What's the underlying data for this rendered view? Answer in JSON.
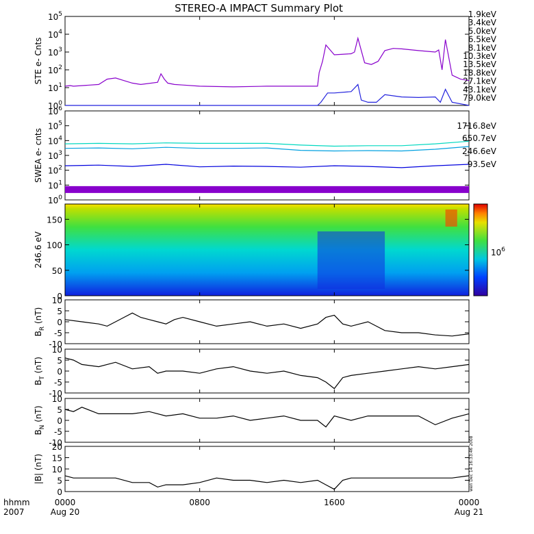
{
  "title": "STEREO-A IMPACT Summary Plot",
  "time_axis": {
    "row1_label": "hhmm",
    "row2_label": "2007",
    "ticks": [
      {
        "x_hours": 0,
        "time": "0000",
        "date": "Aug 20"
      },
      {
        "x_hours": 8,
        "time": "0800",
        "date": ""
      },
      {
        "x_hours": 16,
        "time": "1600",
        "date": ""
      },
      {
        "x_hours": 24,
        "time": "0000",
        "date": "Aug 21"
      }
    ],
    "range_hours": [
      0,
      24
    ]
  },
  "side_text": "wen Dec 14 16:33:46 2008",
  "colors": {
    "ste_1_9": "#8800cc",
    "ste_3_4": "#2222dd",
    "swea_1716": "#8800cc",
    "swea_650": "#0000dd",
    "swea_246": "#00a0e0",
    "swea_93": "#00d8c0",
    "mag": "#000000"
  },
  "chart_data": [
    {
      "panel": "ste",
      "type": "line",
      "ylabel": "STE e- Cnts",
      "yscale": "log",
      "ylim": [
        1,
        100000
      ],
      "ytick_labels": [
        "10^0",
        "10^1",
        "10^2",
        "10^3",
        "10^4",
        "10^5"
      ],
      "legend": [
        {
          "label": "1.9keV",
          "color": "#8800cc"
        },
        {
          "label": "3.4keV",
          "color": "#2222dd"
        },
        {
          "label": "5.0keV",
          "color": "#0050ff"
        },
        {
          "label": "6.5keV",
          "color": "#00aadd"
        },
        {
          "label": "8.1keV",
          "color": "#00c8c8"
        },
        {
          "label": "10.3keV",
          "color": "#00c000"
        },
        {
          "label": "13.5keV",
          "color": "#66cc00"
        },
        {
          "label": "18.8keV",
          "color": "#cccc00"
        },
        {
          "label": "27.1keV",
          "color": "#eecc00"
        },
        {
          "label": "43.1keV",
          "color": "#ee8800"
        },
        {
          "label": "79.0keV",
          "color": "#dd2200"
        }
      ],
      "series": [
        {
          "name": "1.9keV",
          "x": [
            0,
            0.3,
            0.5,
            2,
            2.5,
            3,
            3.5,
            4,
            4.5,
            5.5,
            5.7,
            5.9,
            6.1,
            6.5,
            7,
            8,
            10,
            12,
            15,
            15.1,
            15.3,
            15.5,
            16,
            17,
            17.2,
            17.4,
            17.8,
            18.2,
            18.6,
            19,
            19.5,
            20,
            21,
            22,
            22.2,
            22.4,
            22.6,
            23,
            23.5,
            24
          ],
          "y": [
            12,
            13,
            12,
            15,
            30,
            35,
            25,
            18,
            15,
            20,
            60,
            30,
            18,
            15,
            14,
            12,
            11,
            12,
            12,
            70,
            300,
            2500,
            700,
            800,
            1000,
            6000,
            250,
            200,
            300,
            1200,
            1600,
            1500,
            1200,
            1000,
            1300,
            100,
            5000,
            50,
            30,
            25
          ]
        },
        {
          "name": "3.4keV",
          "x": [
            0,
            14.9,
            15,
            15.2,
            15.6,
            16,
            17,
            17.4,
            17.6,
            18,
            18.5,
            19,
            20,
            21,
            22,
            22.3,
            22.6,
            23,
            24
          ],
          "y": [
            1,
            1,
            1,
            1.5,
            5,
            5,
            6,
            15,
            2,
            1.5,
            1.5,
            4,
            3,
            2.8,
            3,
            1.5,
            8,
            1.5,
            1
          ]
        }
      ]
    },
    {
      "panel": "swea",
      "type": "line",
      "ylabel": "SWEA e- cnts",
      "yscale": "log",
      "ylim": [
        1,
        1000000
      ],
      "ytick_labels": [
        "10^0",
        "10^1",
        "10^2",
        "10^3",
        "10^4",
        "10^5",
        "10^6"
      ],
      "series": [
        {
          "name": "1716.8eV",
          "x": [
            0,
            4,
            8,
            12,
            16,
            20,
            24
          ],
          "y": [
            5,
            5,
            5,
            5,
            5,
            5,
            5
          ]
        },
        {
          "name": "650.7eV",
          "x": [
            0,
            2,
            4,
            6,
            8,
            10,
            12,
            14,
            16,
            18,
            20,
            22,
            24
          ],
          "y": [
            200,
            220,
            180,
            250,
            170,
            190,
            180,
            160,
            200,
            180,
            150,
            200,
            250
          ]
        },
        {
          "name": "246.6eV",
          "x": [
            0,
            2,
            4,
            6,
            8,
            10,
            12,
            14,
            16,
            18,
            20,
            22,
            24
          ],
          "y": [
            3000,
            3200,
            2800,
            3500,
            3000,
            3000,
            3200,
            2200,
            2000,
            2100,
            2000,
            2600,
            4000
          ]
        },
        {
          "name": "93.5eV",
          "x": [
            0,
            2,
            4,
            6,
            8,
            10,
            12,
            14,
            16,
            18,
            20,
            22,
            24
          ],
          "y": [
            6000,
            6500,
            6000,
            7000,
            6500,
            6500,
            6500,
            5000,
            4200,
            4500,
            4500,
            6000,
            9000
          ]
        }
      ]
    },
    {
      "panel": "pad",
      "type": "heatmap",
      "ylabel": "246.6 eV",
      "ylim": [
        0,
        180
      ],
      "ytick_labels": [
        "0",
        "50",
        "100",
        "150"
      ],
      "colorbar_label": "10^6"
    },
    {
      "panel": "br",
      "type": "line",
      "ylabel": "B_R (nT)",
      "ylim": [
        -10,
        10
      ],
      "ytick_labels": [
        "-10",
        "-5",
        "0",
        "5",
        "10"
      ],
      "series": [
        {
          "name": "BR",
          "x": [
            0,
            1,
            2,
            2.5,
            3,
            3.5,
            4,
            4.5,
            5,
            5.5,
            6,
            6.5,
            7,
            8,
            9,
            10,
            11,
            12,
            13,
            14,
            15,
            15.5,
            16,
            16.5,
            17,
            17.5,
            18,
            18.5,
            19,
            20,
            21,
            22,
            23,
            24
          ],
          "y": [
            1,
            0,
            -1,
            -2,
            0,
            2,
            4,
            2,
            1,
            0,
            -1,
            1,
            2,
            0,
            -2,
            -1,
            0,
            -2,
            -1,
            -3,
            -1,
            2,
            3,
            -1,
            -2,
            -1,
            0,
            -2,
            -4,
            -5,
            -5,
            -6,
            -6.5,
            -5.5
          ]
        }
      ]
    },
    {
      "panel": "bt",
      "type": "line",
      "ylabel": "B_T (nT)",
      "ylim": [
        -10,
        10
      ],
      "ytick_labels": [
        "-10",
        "-5",
        "0",
        "5",
        "10"
      ],
      "series": [
        {
          "name": "BT",
          "x": [
            0,
            0.5,
            1,
            2,
            3,
            4,
            5,
            5.5,
            6,
            7,
            8,
            9,
            10,
            11,
            12,
            13,
            14,
            15,
            15.5,
            16,
            16.5,
            17,
            18,
            19,
            20,
            21,
            22,
            23,
            24
          ],
          "y": [
            6,
            5,
            3,
            2,
            4,
            1,
            2,
            -1,
            0,
            0,
            -1,
            1,
            2,
            0,
            -1,
            0,
            -2,
            -3,
            -5,
            -8,
            -3,
            -2,
            -1,
            0,
            1,
            2,
            1,
            2,
            3
          ]
        }
      ]
    },
    {
      "panel": "bn",
      "type": "line",
      "ylabel": "B_N (nT)",
      "ylim": [
        -10,
        10
      ],
      "ytick_labels": [
        "-10",
        "-5",
        "0",
        "5",
        "10"
      ],
      "series": [
        {
          "name": "BN",
          "x": [
            0,
            0.5,
            1,
            2,
            3,
            4,
            5,
            6,
            7,
            8,
            9,
            10,
            11,
            12,
            13,
            14,
            15,
            15.5,
            16,
            17,
            18,
            19,
            20,
            21,
            22,
            23,
            24
          ],
          "y": [
            5,
            4,
            6,
            3,
            3,
            3,
            4,
            2,
            3,
            1,
            1,
            2,
            0,
            1,
            2,
            0,
            0,
            -3,
            2,
            0,
            2,
            2,
            2,
            2,
            -2,
            1,
            3
          ]
        }
      ]
    },
    {
      "panel": "bmag",
      "type": "line",
      "ylabel": "|B| (nT)",
      "ylim": [
        0,
        20
      ],
      "ytick_labels": [
        "0",
        "5",
        "10",
        "15",
        "20"
      ],
      "series": [
        {
          "name": "|B|",
          "x": [
            0,
            0.5,
            1,
            2,
            3,
            4,
            5,
            5.5,
            6,
            7,
            8,
            9,
            10,
            11,
            12,
            13,
            14,
            15,
            15.5,
            16,
            16.5,
            17,
            18,
            19,
            20,
            21,
            22,
            23,
            24
          ],
          "y": [
            7,
            6,
            6,
            6,
            6,
            4,
            4,
            2,
            3,
            3,
            4,
            6,
            5,
            5,
            4,
            5,
            4,
            5,
            3,
            1,
            5,
            6,
            6,
            6,
            6,
            6,
            6,
            6,
            7
          ]
        }
      ]
    }
  ]
}
